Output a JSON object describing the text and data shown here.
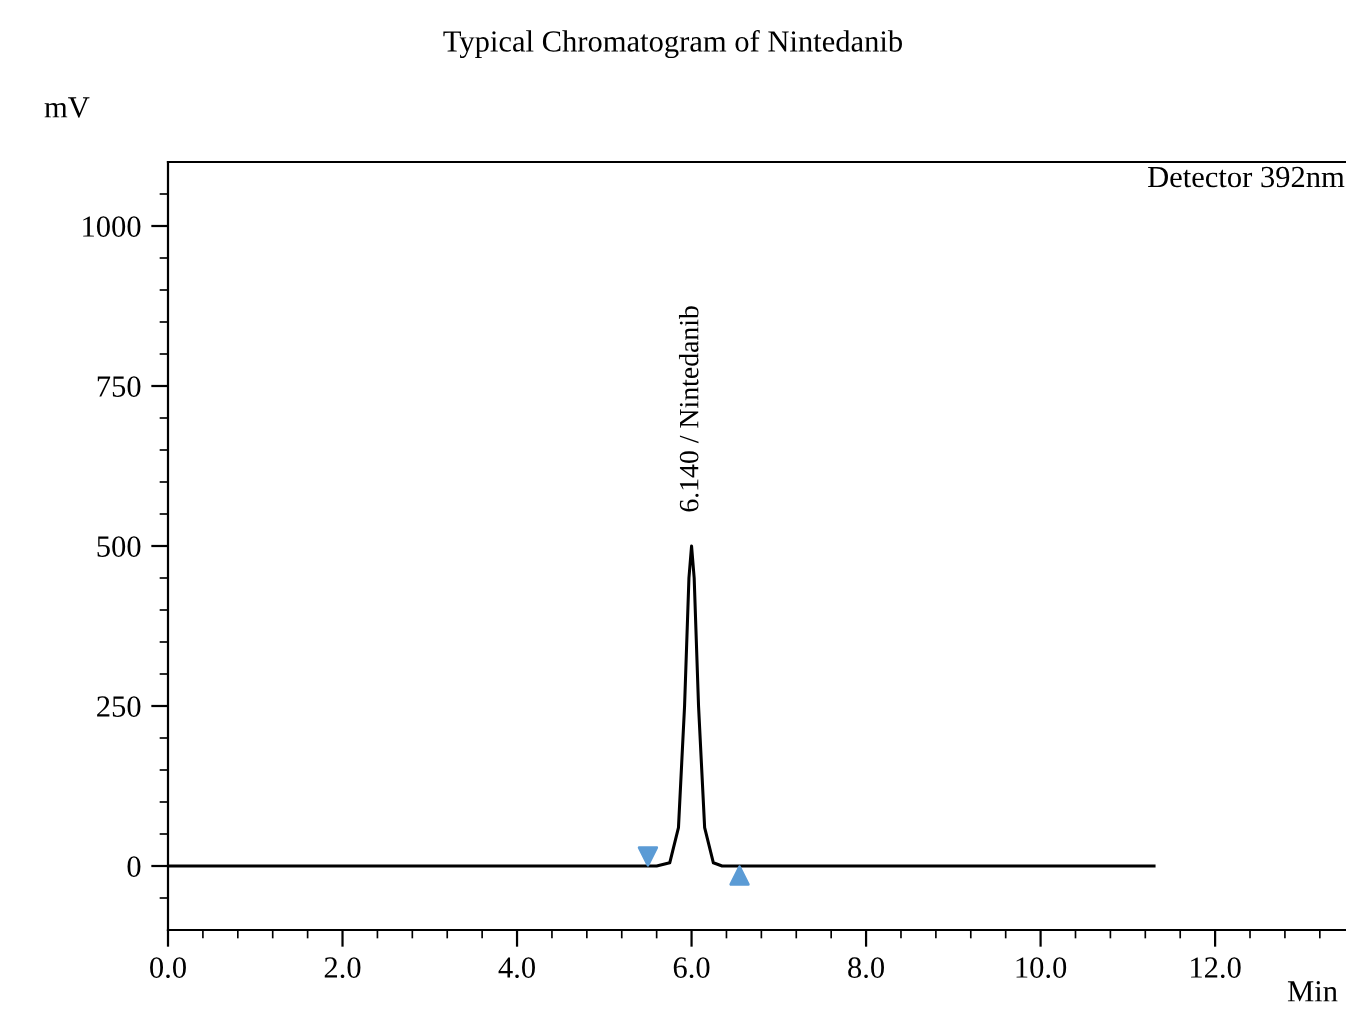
{
  "chart_data": {
    "type": "line",
    "title": "Typical Chromatogram of Nintedanib",
    "xlabel": "Min",
    "ylabel": "mV",
    "annotations": [
      {
        "text": "6.140 / Nintedanib",
        "x": 6.0,
        "y": 500
      },
      "Detector 392nm"
    ],
    "series": [
      {
        "color": "#000000",
        "x": [
          0,
          5.6,
          5.75,
          5.85,
          5.92,
          5.97,
          6.0,
          6.03,
          6.08,
          6.15,
          6.25,
          6.35,
          11.3
        ],
        "values": [
          0,
          0,
          5,
          60,
          250,
          450,
          500,
          450,
          250,
          60,
          5,
          0,
          0
        ]
      },
      {
        "type": "scatter",
        "color": "#5b9bd5",
        "marker": "triangle",
        "x": [
          5.5,
          6.55
        ],
        "values": [
          15,
          -15
        ]
      }
    ],
    "xlim": [
      0,
      13.5
    ],
    "ylim": [
      -100,
      1100
    ],
    "xticks": [
      {
        "value": 0,
        "label": "0.0"
      },
      {
        "value": 0.4,
        "label": null
      },
      {
        "value": 0.8,
        "label": null
      },
      {
        "value": 1.2,
        "label": null
      },
      {
        "value": 1.6,
        "label": null
      },
      {
        "value": 2,
        "label": "2.0"
      },
      {
        "value": 2.4,
        "label": null
      },
      {
        "value": 2.8,
        "label": null
      },
      {
        "value": 3.2,
        "label": null
      },
      {
        "value": 3.6,
        "label": null
      },
      {
        "value": 4,
        "label": "4.0"
      },
      {
        "value": 4.4,
        "label": null
      },
      {
        "value": 4.8,
        "label": null
      },
      {
        "value": 5.2,
        "label": null
      },
      {
        "value": 5.6,
        "label": null
      },
      {
        "value": 6,
        "label": "6.0"
      },
      {
        "value": 6.4,
        "label": null
      },
      {
        "value": 6.8,
        "label": null
      },
      {
        "value": 7.2,
        "label": null
      },
      {
        "value": 7.6,
        "label": null
      },
      {
        "value": 8,
        "label": "8.0"
      },
      {
        "value": 8.4,
        "label": null
      },
      {
        "value": 8.8,
        "label": null
      },
      {
        "value": 9.2,
        "label": null
      },
      {
        "value": 9.6,
        "label": null
      },
      {
        "value": 10,
        "label": "10.0"
      },
      {
        "value": 10.4,
        "label": null
      },
      {
        "value": 10.8,
        "label": null
      },
      {
        "value": 11.2,
        "label": null
      },
      {
        "value": 11.6,
        "label": null
      },
      {
        "value": 12,
        "label": "12.0"
      },
      {
        "value": 12.4,
        "label": null
      },
      {
        "value": 12.8,
        "label": null
      },
      {
        "value": 13.2,
        "label": null
      }
    ],
    "yticks": [
      {
        "value": -50,
        "label": null
      },
      0,
      {
        "value": 50,
        "label": null
      },
      {
        "value": 100,
        "label": null
      },
      {
        "value": 150,
        "label": null
      },
      {
        "value": 200,
        "label": null
      },
      250,
      {
        "value": 300,
        "label": null
      },
      {
        "value": 350,
        "label": null
      },
      {
        "value": 400,
        "label": null
      },
      {
        "value": 450,
        "label": null
      },
      500,
      {
        "value": 550,
        "label": null
      },
      {
        "value": 600,
        "label": null
      },
      {
        "value": 650,
        "label": null
      },
      {
        "value": 700,
        "label": null
      },
      750,
      {
        "value": 800,
        "label": null
      },
      {
        "value": 850,
        "label": null
      },
      {
        "value": 900,
        "label": null
      },
      {
        "value": 950,
        "label": null
      },
      1000,
      {
        "value": 1050,
        "label": null
      }
    ],
    "grid": false,
    "legend": false
  }
}
